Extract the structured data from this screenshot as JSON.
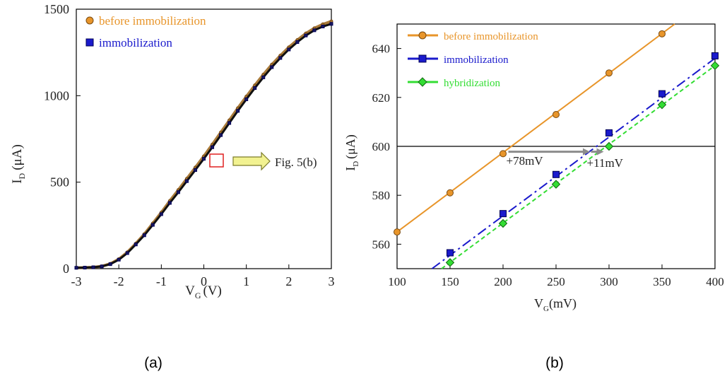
{
  "chart_data": [
    {
      "type": "scatter",
      "panel_caption": "(a)",
      "xlabel": "V",
      "xlabel_sub": "G",
      "xlabel_unit": "(V)",
      "ylabel": "I",
      "ylabel_sub": "D",
      "ylabel_unit": "(μA)",
      "xlim": [
        -3,
        3
      ],
      "ylim": [
        0,
        1500
      ],
      "xticks": [
        -3,
        -2,
        -1,
        0,
        1,
        2,
        3
      ],
      "yticks": [
        0,
        500,
        1000,
        1500
      ],
      "xtick_labels": [
        "-3",
        "-2",
        "-1",
        "0",
        "1",
        "2",
        "3"
      ],
      "ytick_labels": [
        "0",
        "500",
        "1000",
        "1500"
      ],
      "grid": false,
      "legend_position": "top-left",
      "annotation": {
        "text": "Fig. 5(b)",
        "x": 0.3,
        "y": 640
      },
      "series": [
        {
          "name": "before immobilization",
          "color": "#e8952a",
          "marker": "circle",
          "x": [
            -3,
            -2.8,
            -2.6,
            -2.4,
            -2.2,
            -2.0,
            -1.8,
            -1.6,
            -1.4,
            -1.2,
            -1.0,
            -0.8,
            -0.6,
            -0.4,
            -0.2,
            0,
            0.2,
            0.4,
            0.6,
            0.8,
            1.0,
            1.2,
            1.4,
            1.6,
            1.8,
            2.0,
            2.2,
            2.4,
            2.6,
            2.8,
            3.0
          ],
          "y": [
            5,
            6,
            8,
            14,
            28,
            55,
            95,
            145,
            200,
            262,
            325,
            392,
            455,
            520,
            585,
            650,
            718,
            788,
            858,
            928,
            995,
            1060,
            1122,
            1180,
            1232,
            1280,
            1322,
            1360,
            1390,
            1413,
            1430
          ]
        },
        {
          "name": "immobilization",
          "color": "#1a1acc",
          "marker": "square",
          "x": [
            -3,
            -2.8,
            -2.6,
            -2.4,
            -2.2,
            -2.0,
            -1.8,
            -1.6,
            -1.4,
            -1.2,
            -1.0,
            -0.8,
            -0.6,
            -0.4,
            -0.2,
            0,
            0.2,
            0.4,
            0.6,
            0.8,
            1.0,
            1.2,
            1.4,
            1.6,
            1.8,
            2.0,
            2.2,
            2.4,
            2.6,
            2.8,
            3.0
          ],
          "y": [
            5,
            6,
            8,
            13,
            26,
            52,
            90,
            140,
            193,
            253,
            315,
            380,
            442,
            506,
            570,
            635,
            702,
            772,
            842,
            912,
            979,
            1044,
            1106,
            1165,
            1218,
            1267,
            1310,
            1348,
            1378,
            1400,
            1415
          ]
        }
      ]
    },
    {
      "type": "line",
      "panel_caption": "(b)",
      "xlabel": "V",
      "xlabel_sub": "G",
      "xlabel_unit": "(mV)",
      "ylabel": "I",
      "ylabel_sub": "D",
      "ylabel_unit": "(μA)",
      "xlim": [
        100,
        400
      ],
      "ylim": [
        550,
        650
      ],
      "xticks": [
        100,
        150,
        200,
        250,
        300,
        350,
        400
      ],
      "yticks": [
        560,
        580,
        600,
        620,
        640
      ],
      "xtick_labels": [
        "100",
        "150",
        "200",
        "250",
        "300",
        "350",
        "400"
      ],
      "ytick_labels": [
        "560",
        "580",
        "600",
        "620",
        "640"
      ],
      "grid": false,
      "legend_position": "top-left",
      "reference_line_y": 600,
      "annotations": [
        {
          "text": "+78mV",
          "x": 203,
          "y": 594
        },
        {
          "text": "+11mV",
          "x": 279,
          "y": 593
        }
      ],
      "shift_arrows": [
        {
          "from": [
            205,
            597.8
          ],
          "to": [
            282,
            597.8
          ]
        },
        {
          "from": [
            283,
            597.8
          ],
          "to": [
            295,
            597.8
          ]
        }
      ],
      "series": [
        {
          "name": "before immobilization",
          "color": "#e8952a",
          "marker": "circle",
          "linestyle": "solid",
          "x": [
            100,
            150,
            200,
            250,
            300,
            350
          ],
          "y": [
            565,
            581,
            597,
            613,
            630,
            646
          ],
          "fit_x": [
            100,
            362
          ],
          "fit_y": [
            565,
            650
          ]
        },
        {
          "name": "immobilization",
          "color": "#1a1acc",
          "marker": "square",
          "linestyle": "dashdot",
          "x": [
            150,
            200,
            250,
            300,
            350,
            400
          ],
          "y": [
            556.5,
            572.5,
            588.5,
            605.5,
            621.5,
            637
          ],
          "fit_x": [
            133,
            400
          ],
          "fit_y": [
            550,
            636
          ]
        },
        {
          "name": "hybridization",
          "color": "#33dd33",
          "marker": "diamond",
          "linestyle": "dashed",
          "x": [
            150,
            200,
            250,
            300,
            350,
            400
          ],
          "y": [
            552.5,
            568.5,
            584.5,
            600,
            617,
            633
          ],
          "fit_x": [
            142,
            400
          ],
          "fit_y": [
            550,
            633
          ]
        }
      ]
    }
  ]
}
